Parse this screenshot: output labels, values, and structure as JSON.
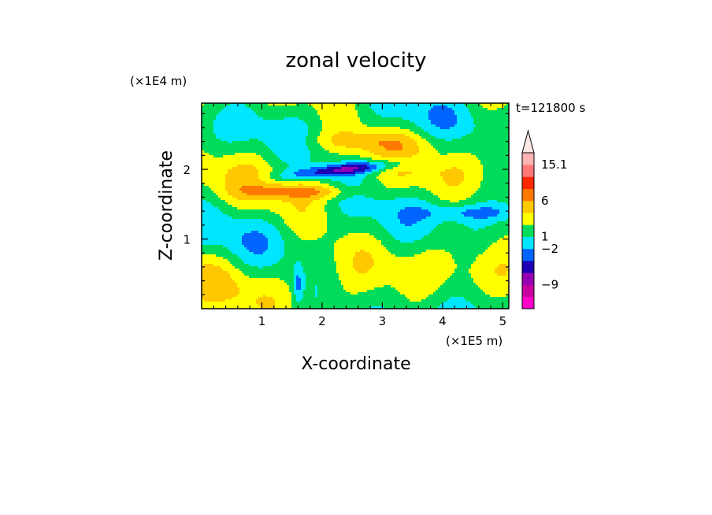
{
  "chart_data": {
    "type": "heatmap",
    "title": "zonal velocity",
    "xlabel": "X-coordinate",
    "ylabel": "Z-coordinate",
    "x_scale_label": "(×1E5 m)",
    "y_scale_label": "(×1E4 m)",
    "time_label": "t=121800 s",
    "xlim": [
      0,
      5.1
    ],
    "ylim": [
      0,
      2.95
    ],
    "x_ticks": [
      1,
      2,
      3,
      4,
      5
    ],
    "y_ticks": [
      1,
      2
    ],
    "colorbar": {
      "labels": [
        {
          "text": "15.1",
          "level": 12
        },
        {
          "text": "6",
          "level": 9
        },
        {
          "text": "1",
          "level": 6
        },
        {
          "text": "−2",
          "level": 5
        },
        {
          "text": "−9",
          "level": 2
        }
      ],
      "levels": 13,
      "colors": [
        "#ff00c8",
        "#c800a0",
        "#9600b4",
        "#1e00b4",
        "#0064ff",
        "#00e6ff",
        "#00dc5a",
        "#ffff00",
        "#ffc800",
        "#ff7800",
        "#ff2800",
        "#ff7878",
        "#ffb4b4"
      ],
      "extend": "max"
    },
    "grid": false,
    "legend": "colorbar-right"
  }
}
